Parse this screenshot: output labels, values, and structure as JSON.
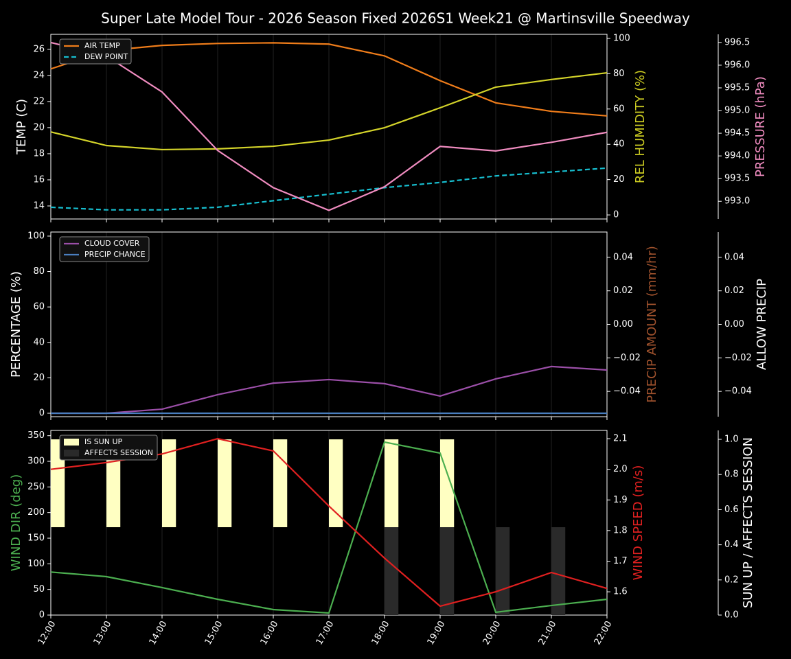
{
  "chart_data": [
    {
      "type": "line",
      "title": "Super Late Model Tour - 2026 Season Fixed 2026S1 Week21 @ Martinsville Speedway",
      "y_label": "TEMP (C)",
      "y_color": "#ffffff",
      "ylim": [
        13.0,
        27.15
      ],
      "yticks": [
        14,
        16,
        18,
        20,
        22,
        24,
        26
      ],
      "y2_label": "REL HUMIDITY (%)",
      "y2_color": "#cccc22",
      "y2lim": [
        -2.3,
        102.3
      ],
      "y2ticks": [
        0,
        20,
        40,
        60,
        80,
        100
      ],
      "y3_label": "PRESSURE (hPa)",
      "y3_color": "#f08cc0",
      "y3lim": [
        992.61,
        996.68
      ],
      "y3ticks": [
        {
          "value": 993.0,
          "label": "993.0"
        },
        993.5,
        {
          "value": 994.0,
          "label": "994.0"
        },
        994.5,
        {
          "value": 995.0,
          "label": "995.0"
        },
        995.5,
        {
          "value": 996.0,
          "label": "996.0"
        },
        996.5
      ],
      "legend": "upper left",
      "grid": true,
      "series": [
        {
          "name": "AIR TEMP",
          "color": "#f07d1a",
          "axis": "y",
          "legend": true,
          "values": [
            24.5,
            25.9,
            26.3,
            26.45,
            26.5,
            26.4,
            25.5,
            23.6,
            21.9,
            21.25,
            20.9
          ]
        },
        {
          "name": "DEW POINT",
          "color": "#17becf",
          "axis": "y",
          "dash": true,
          "legend": true,
          "values": [
            13.9,
            13.7,
            13.7,
            13.9,
            14.4,
            14.9,
            15.4,
            15.8,
            16.3,
            16.6,
            16.9
          ]
        },
        {
          "color": "#d4d42a",
          "axis": "y2",
          "values": [
            47,
            39.3,
            37,
            37.4,
            38.9,
            42.4,
            49.4,
            60.7,
            72.4,
            76.7,
            80.5
          ]
        },
        {
          "color": "#f08cc0",
          "axis": "y3",
          "values": [
            996.5,
            996.2,
            995.41,
            994.12,
            993.3,
            992.8,
            993.32,
            994.21,
            994.11,
            994.3,
            994.52
          ]
        }
      ]
    },
    {
      "type": "line",
      "y_label": "PERCENTAGE (%)",
      "y_color": "#ffffff",
      "ylim": [
        -1.94,
        102.3
      ],
      "yticks": [
        0,
        20,
        40,
        60,
        80,
        100
      ],
      "y2_label": "PRECIP AMOUNT (mm/hr)",
      "y2_color": "#a0522d",
      "y2lim": [
        -0.0551,
        0.0551
      ],
      "y2ticks": [
        {
          "value": -0.04,
          "label": "−0.04"
        },
        {
          "value": -0.02,
          "label": "−0.02"
        },
        {
          "value": 0,
          "label": "0.00"
        },
        0.02,
        0.04
      ],
      "y3_label": "ALLOW PRECIP",
      "y3_color": "#ffffff",
      "y3lim": [
        -0.0551,
        0.0551
      ],
      "y3ticks": [
        {
          "value": -0.04,
          "label": "−0.04"
        },
        {
          "value": -0.02,
          "label": "−0.02"
        },
        {
          "value": 0,
          "label": "0.00"
        },
        0.02,
        0.04
      ],
      "legend": "upper left",
      "grid": true,
      "series": [
        {
          "name": "CLOUD COVER",
          "color": "#9b4fa8",
          "axis": "y",
          "legend": true,
          "values": [
            0,
            0,
            2.3,
            10.5,
            17,
            19,
            16.7,
            9.7,
            19.4,
            26.4,
            24.4
          ]
        },
        {
          "name": "PRECIP CHANCE",
          "color": "#4a7fc0",
          "axis": "y",
          "legend": true,
          "values": [
            0,
            0,
            0,
            0,
            0,
            0,
            0,
            0,
            0,
            0,
            0
          ]
        }
      ]
    },
    {
      "type": "line",
      "categories": [
        "12:00",
        "13:00",
        "14:00",
        "15:00",
        "16:00",
        "17:00",
        "18:00",
        "19:00",
        "20:00",
        "21:00",
        "22:00"
      ],
      "y_label": "WIND DIR (deg)",
      "y_color": "#4caf50",
      "ylim": [
        0,
        360.3
      ],
      "yticks": [
        0,
        50,
        100,
        150,
        200,
        250,
        300,
        350
      ],
      "y2_label": "WIND SPEED (m/s)",
      "y2_color": "#e02020",
      "y2lim": [
        1.524,
        2.127
      ],
      "y2ticks": [
        1.6,
        1.7,
        1.8,
        1.9,
        {
          "value": 2.0,
          "label": "2.0"
        },
        2.1
      ],
      "y3_label": "SUN UP / AFFECTS SESSION",
      "y3_color": "#ffffff",
      "y3lim": [
        0,
        1.0508
      ],
      "y3ticks": [
        {
          "value": 0,
          "label": "0.0"
        },
        0.2,
        0.4,
        0.6,
        0.8,
        {
          "value": 1,
          "label": "1.0"
        }
      ],
      "legend": "upper left",
      "grid": true,
      "series": [
        {
          "name": "IS SUN UP",
          "color": "#ffffc2",
          "axis": "y3",
          "kind": "bar",
          "bar_span": [
            0.5,
            1
          ],
          "legend": true,
          "values": [
            1,
            1,
            1,
            1,
            1,
            1,
            1,
            1,
            0,
            0,
            0
          ]
        },
        {
          "name": "AFFECTS SESSION",
          "color": "#2a2a2a",
          "axis": "y3",
          "kind": "bar",
          "bar_span": [
            0,
            0.5
          ],
          "legend": true,
          "values": [
            0,
            0,
            0,
            0,
            0,
            0,
            1,
            1,
            1,
            1,
            0
          ]
        },
        {
          "color": "#4caf50",
          "axis": "y",
          "values": [
            84,
            75,
            53.6,
            30.8,
            10.7,
            4,
            337.5,
            316,
            5.4,
            18.7,
            30.8
          ]
        },
        {
          "color": "#e02020",
          "axis": "y2",
          "values": [
            2.0,
            2.022,
            2.05,
            2.1,
            2.06,
            1.88,
            1.71,
            1.553,
            1.6,
            1.663,
            1.611
          ]
        }
      ]
    }
  ]
}
